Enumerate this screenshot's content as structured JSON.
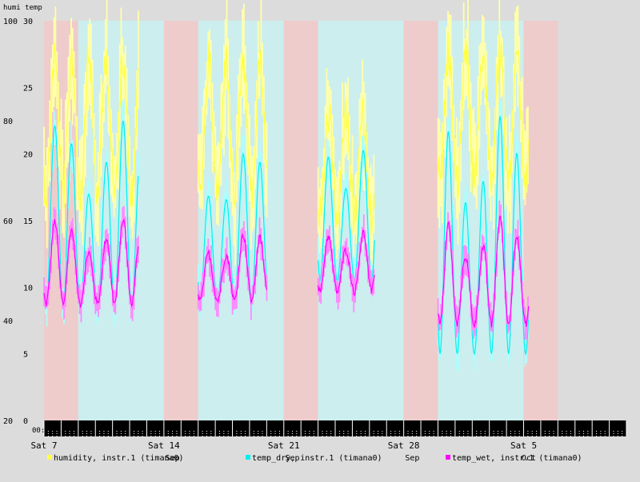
{
  "chart_data": {
    "type": "line",
    "title": "humi temp",
    "left_axis": {
      "label": "humi",
      "ylim": [
        20,
        100
      ],
      "ticks": [
        20,
        40,
        60,
        80,
        100
      ]
    },
    "right_axis": {
      "label": "temp",
      "ylim": [
        0,
        30
      ],
      "ticks": [
        0,
        5,
        10,
        15,
        20,
        25,
        30
      ]
    },
    "x_axis": {
      "xlim_days": [
        0,
        34
      ],
      "tick_labels": [
        "Sat 7",
        "Sat 14",
        "Sat 21",
        "Sat 28",
        "Sat 5"
      ],
      "tick_days": [
        0,
        7,
        14,
        21,
        28
      ],
      "month_labels": [
        {
          "text": "Sep",
          "day": 7.5
        },
        {
          "text": "Sep",
          "day": 14.5
        },
        {
          "text": "Sep",
          "day": 21.5
        },
        {
          "text": "Oct",
          "day": 28.3
        }
      ],
      "time_label": "00:"
    },
    "background_bands": [
      {
        "from": 0,
        "to": 2,
        "kind": "pink"
      },
      {
        "from": 2,
        "to": 7,
        "kind": "cyan"
      },
      {
        "from": 7,
        "to": 9,
        "kind": "pink"
      },
      {
        "from": 9,
        "to": 14,
        "kind": "cyan"
      },
      {
        "from": 14,
        "to": 16,
        "kind": "pink"
      },
      {
        "from": 16,
        "to": 21,
        "kind": "cyan"
      },
      {
        "from": 21,
        "to": 23,
        "kind": "pink"
      },
      {
        "from": 23,
        "to": 28,
        "kind": "cyan"
      },
      {
        "from": 28,
        "to": 30,
        "kind": "pink"
      }
    ],
    "band_colors": {
      "pink": "#eecccc",
      "cyan": "#cceeee"
    },
    "data_segments": [
      {
        "start": 0.0,
        "days": 5.5,
        "temp_min": 8.5,
        "temp_max": 22.5,
        "humi_low": 42,
        "humi_high": 97
      },
      {
        "start": 9.0,
        "days": 4.0,
        "temp_min": 9.0,
        "temp_max": 20.5,
        "humi_low": 42,
        "humi_high": 96
      },
      {
        "start": 16.0,
        "days": 3.3,
        "temp_min": 10.5,
        "temp_max": 22.0,
        "humi_low": 45,
        "humi_high": 85
      },
      {
        "start": 23.0,
        "days": 5.3,
        "temp_min": 5.0,
        "temp_max": 23.0,
        "humi_low": 45,
        "humi_high": 98
      }
    ],
    "series": [
      {
        "name": "humidity, instr.1 (timana0)",
        "axis": "left",
        "color": "#ffff44",
        "band_color": "#ffffaa"
      },
      {
        "name": "temp_dry, instr.1 (timana0)",
        "axis": "right",
        "color": "#00eeee",
        "band_color": "#aaffff"
      },
      {
        "name": "temp_wet, instr.1 (timana0)",
        "axis": "right",
        "color": "#ff00ff",
        "band_color": "#ff88ff"
      }
    ],
    "grid": false,
    "legend_placement": "bottom"
  }
}
